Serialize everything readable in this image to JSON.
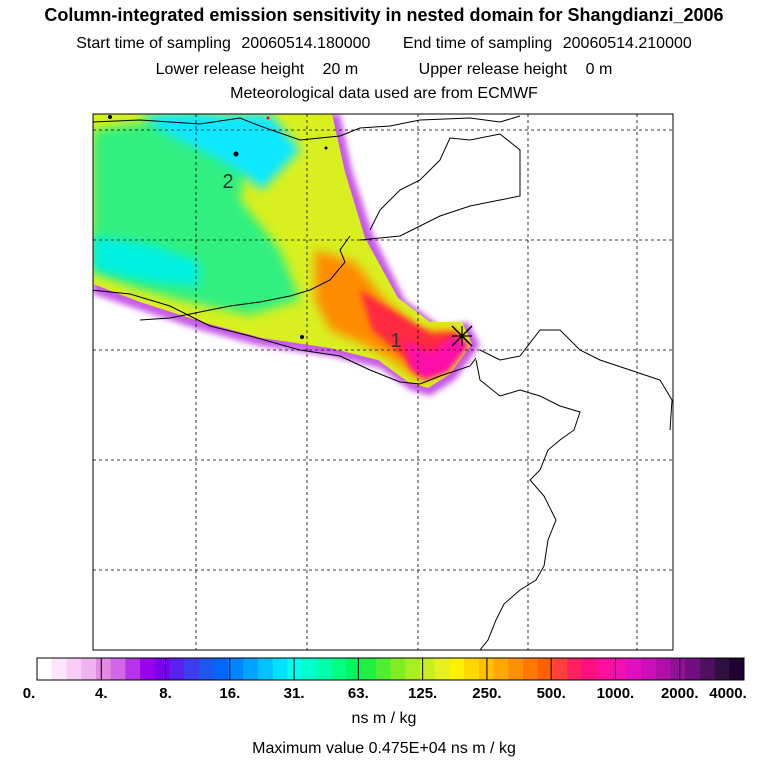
{
  "header": {
    "title": "Column-integrated emission sensitivity in nested domain for Shangdianzi_2006",
    "start_label": "Start time of sampling",
    "start_value": "20060514.180000",
    "end_label": "End time of sampling",
    "end_value": "20060514.210000",
    "lower_label": "Lower release height",
    "lower_value": "20 m",
    "upper_label": "Upper release height",
    "upper_value": "0 m",
    "met_line": "Meteorological data used are from ECMWF"
  },
  "map": {
    "contour_labels": [
      "1",
      "2"
    ],
    "receptor_symbol": "X"
  },
  "colorbar": {
    "tick_labels": [
      "0.",
      "4.",
      "8.",
      "16.",
      "31.",
      "63.",
      "125.",
      "250.",
      "500.",
      "1000.",
      "2000.",
      "4000."
    ],
    "colors": [
      "#ffffff",
      "#fbe6fb",
      "#f7ccf7",
      "#f0b3f0",
      "#e38ae3",
      "#d266e6",
      "#b733ea",
      "#9900ee",
      "#7a00f0",
      "#5a22f0",
      "#3c3cf0",
      "#1f55f0",
      "#0066ff",
      "#0085ff",
      "#00a3ff",
      "#00c2ff",
      "#00e0ff",
      "#00ffee",
      "#00ffcc",
      "#00ffaa",
      "#00ff80",
      "#00f560",
      "#20f040",
      "#50ee30",
      "#80ee20",
      "#a6f020",
      "#c8f020",
      "#e6f020",
      "#fff000",
      "#ffd800",
      "#ffc000",
      "#ffa800",
      "#ff9000",
      "#ff7800",
      "#ff6000",
      "#ff4040",
      "#ff2060",
      "#ff1080",
      "#ff10a0",
      "#f010b0",
      "#e010c0",
      "#cc10b8",
      "#b010a8",
      "#901098",
      "#701080",
      "#501060",
      "#301040",
      "#200030"
    ],
    "units": "ns m / kg",
    "max_text": "Maximum value  0.475E+04 ns m / kg"
  }
}
